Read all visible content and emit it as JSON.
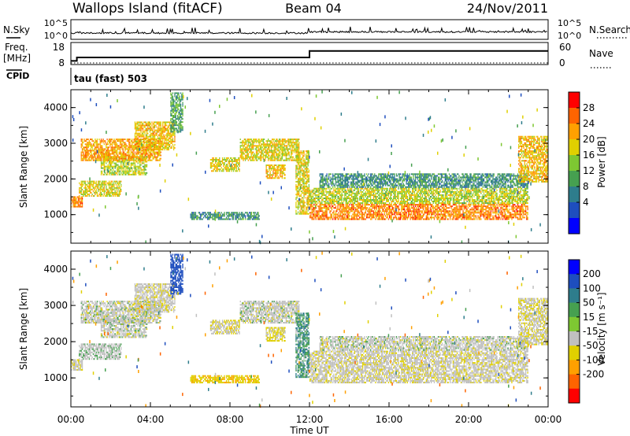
{
  "chart_data": {
    "type": "heatmap",
    "header": {
      "station": "Wallops Island (fitACF)",
      "beam": "Beam 04",
      "date": "24/Nov/2011"
    },
    "noise_panel": {
      "left_label": "N.Sky",
      "right_label": "N.Search",
      "left_ticks": [
        "10^5",
        "10^0"
      ],
      "right_ticks": [
        "10^5",
        "10^0"
      ]
    },
    "freq_panel": {
      "left_label_lines": [
        "Freq.",
        "[MHz]"
      ],
      "left_ticks": [
        18,
        8
      ],
      "right_label": "Nave",
      "right_ticks": [
        60,
        0
      ],
      "frequency_steps": [
        {
          "t_start": 0.0,
          "t_end": 0.3,
          "freq_mhz": 8.3
        },
        {
          "t_start": 0.3,
          "t_end": 12.0,
          "freq_mhz": 10.5
        },
        {
          "t_start": 12.0,
          "t_end": 24.0,
          "freq_mhz": 14.6
        }
      ]
    },
    "cpid_label": "CPID",
    "cpid_text": "tau (fast) 503",
    "xaxis": {
      "label": "Time UT",
      "ticks": [
        "00:00",
        "04:00",
        "08:00",
        "12:00",
        "16:00",
        "20:00",
        "00:00"
      ],
      "range_hours": [
        0,
        24
      ]
    },
    "yaxis": {
      "label": "Slant Range [km]",
      "ticks": [
        1000,
        2000,
        3000,
        4000
      ],
      "range_km": [
        200,
        4500
      ]
    },
    "power_colorbar": {
      "label": "Power [dB]",
      "tick_labels": [
        "4",
        "8",
        "12",
        "16",
        "20",
        "24",
        "28"
      ],
      "colors": [
        "#0000ff",
        "#1e4ebe",
        "#2e7d8c",
        "#46a050",
        "#7ec832",
        "#e0d000",
        "#ffa000",
        "#ff6400",
        "#ff0000"
      ]
    },
    "velocity_colorbar": {
      "label": "Velocity [m s⁻¹]",
      "tick_labels": [
        "200",
        "100",
        "50",
        "15",
        "-15",
        "-50",
        "-100",
        "-200"
      ],
      "colors": [
        "#0000ff",
        "#1e4ebe",
        "#2e7d8c",
        "#46a050",
        "#7ec832",
        "#c0c0c0",
        "#e0d000",
        "#ffa000",
        "#ff6400",
        "#ff0000"
      ]
    },
    "scatter_bands": [
      {
        "t0": 0.0,
        "t1": 0.6,
        "r_lo": 1200,
        "r_hi": 1500,
        "power": 28,
        "vel": -10
      },
      {
        "t0": 0.4,
        "t1": 2.5,
        "r_lo": 1500,
        "r_hi": 1950,
        "power": 22,
        "vel": 5
      },
      {
        "t0": 1.5,
        "t1": 3.8,
        "r_lo": 2100,
        "r_hi": 2600,
        "power": 20,
        "vel": 0
      },
      {
        "t0": 0.5,
        "t1": 4.5,
        "r_lo": 2500,
        "r_hi": 3100,
        "power": 26,
        "vel": 0
      },
      {
        "t0": 3.2,
        "t1": 5.2,
        "r_lo": 2800,
        "r_hi": 3600,
        "power": 24,
        "vel": -5
      },
      {
        "t0": 5.0,
        "t1": 5.6,
        "r_lo": 3300,
        "r_hi": 4400,
        "power": 14,
        "vel": 120
      },
      {
        "t0": 7.0,
        "t1": 8.5,
        "r_lo": 2200,
        "r_hi": 2600,
        "power": 22,
        "vel": -10
      },
      {
        "t0": 8.5,
        "t1": 11.5,
        "r_lo": 2500,
        "r_hi": 3100,
        "power": 22,
        "vel": 0
      },
      {
        "t0": 9.8,
        "t1": 10.8,
        "r_lo": 2000,
        "r_hi": 2400,
        "power": 24,
        "vel": -20
      },
      {
        "t0": 6.0,
        "t1": 9.5,
        "r_lo": 850,
        "r_hi": 1050,
        "power": 12,
        "vel": -40
      },
      {
        "t0": 11.3,
        "t1": 12.0,
        "r_lo": 1000,
        "r_hi": 2800,
        "power": 22,
        "vel": 30
      },
      {
        "t0": 12.0,
        "t1": 23.0,
        "r_lo": 850,
        "r_hi": 1300,
        "power": 28,
        "vel": -5
      },
      {
        "t0": 12.0,
        "t1": 23.0,
        "r_lo": 1300,
        "r_hi": 1750,
        "power": 20,
        "vel": -5
      },
      {
        "t0": 12.5,
        "t1": 23.0,
        "r_lo": 1750,
        "r_hi": 2150,
        "power": 12,
        "vel": 0
      },
      {
        "t0": 22.5,
        "t1": 24.0,
        "r_lo": 1900,
        "r_hi": 3200,
        "power": 24,
        "vel": -10
      }
    ],
    "noise_scatter": [
      {
        "t0": 0.0,
        "t1": 24.0,
        "r_lo": 200,
        "r_hi": 4500,
        "density": 0.004
      }
    ]
  }
}
